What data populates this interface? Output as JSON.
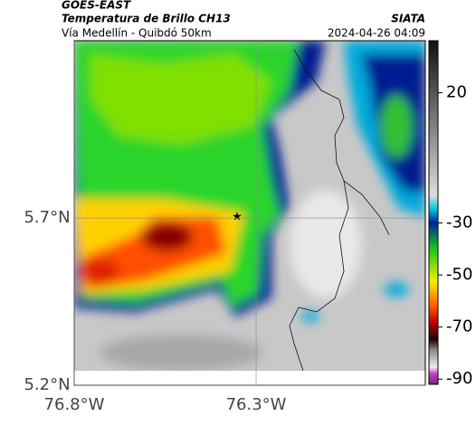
{
  "header": {
    "title": "GOES-EAST",
    "subtitle": "Temperatura de Brillo CH13",
    "route": "Vía Medellín - Quibdó 50km",
    "source": "SIATA",
    "timestamp": "2024-04-26 04:09"
  },
  "map": {
    "latlim": [
      5.2,
      6.23
    ],
    "lonlim": [
      -76.8,
      -75.835
    ],
    "latticks": [
      {
        "value": 5.7,
        "label": "5.7°N"
      },
      {
        "value": 5.2,
        "label": "5.2°N"
      }
    ],
    "lonticks": [
      {
        "value": -76.8,
        "label": "76.8°W"
      },
      {
        "value": -76.3,
        "label": "76.3°W"
      }
    ]
  },
  "colorbar": {
    "clim": [
      40,
      -92
    ],
    "ticks": [
      20,
      -30,
      -50,
      -70,
      -90
    ]
  }
}
